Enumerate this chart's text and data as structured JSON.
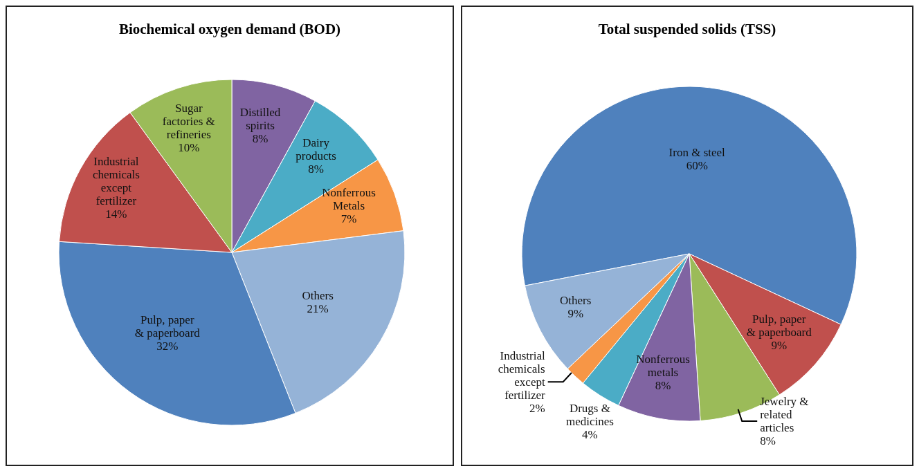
{
  "chart_data": [
    {
      "type": "pie",
      "title": "Biochemical oxygen demand (BOD)",
      "categories": [
        "Distilled spirits",
        "Dairy products",
        "Nonferrous Metals",
        "Others",
        "Pulp, paper & paperboard",
        "Industrial chemicals except fertilizer",
        "Sugar factories & refineries"
      ],
      "values": [
        8,
        8,
        7,
        21,
        32,
        14,
        10
      ],
      "value_labels": [
        "8%",
        "8%",
        "7%",
        "21%",
        "32%",
        "14%",
        "10%"
      ],
      "colors": [
        "#8064a2",
        "#4bacc6",
        "#f79646",
        "#95b3d7",
        "#4f81bd",
        "#c0504d",
        "#9bbb59"
      ]
    },
    {
      "type": "pie",
      "title": "Total suspended solids (TSS)",
      "categories": [
        "Iron & steel",
        "Pulp, paper & paperboard",
        "Jewelry & related articles",
        "Nonferrous metals",
        "Drugs & medicines",
        "Industrial chemicals except fertilizer",
        "Others"
      ],
      "values": [
        60,
        9,
        8,
        8,
        4,
        2,
        9
      ],
      "value_labels": [
        "60%",
        "9%",
        "8%",
        "8%",
        "4%",
        "2%",
        "9%"
      ],
      "colors": [
        "#4f81bd",
        "#c0504d",
        "#9bbb59",
        "#8064a2",
        "#4bacc6",
        "#f79646",
        "#95b3d7"
      ]
    }
  ]
}
